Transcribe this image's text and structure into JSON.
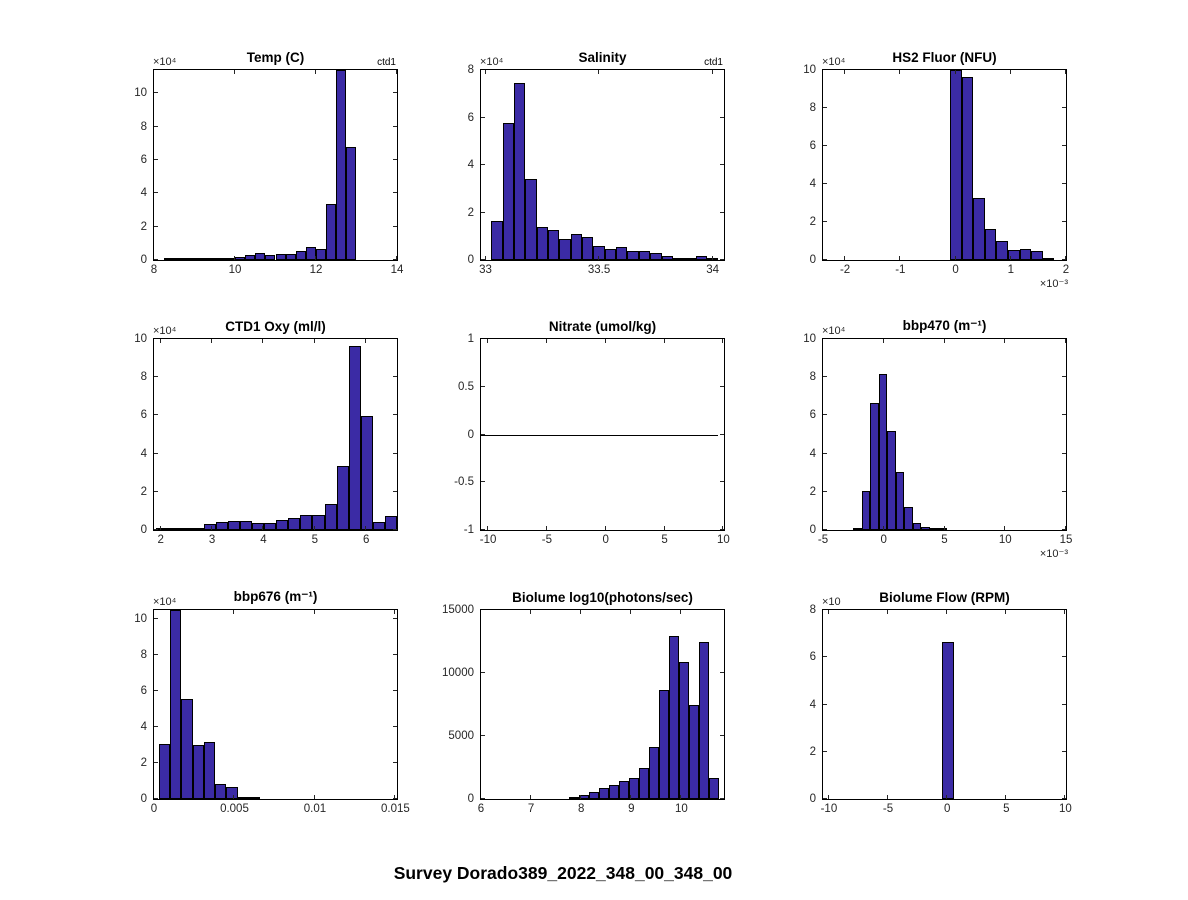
{
  "figure": {
    "title": "Survey Dorado389_2022_348_00_348_00",
    "background": "#ffffff"
  },
  "style": {
    "bar_fill": "#3b2ba5",
    "bar_edge": "#000000",
    "axis_color": "#000000",
    "tick_label_color": "#262626"
  },
  "chart_data": [
    {
      "id": "temp",
      "type": "bar",
      "title": "Temp (C)",
      "annotation": "ctd1",
      "y_exponent": "×10⁴",
      "x_exponent": "",
      "xlabel": "",
      "ylabel": "",
      "xlim": [
        8,
        14
      ],
      "ylim": [
        0,
        11.4
      ],
      "xtick_vals": [
        8,
        10,
        12,
        14
      ],
      "xtick_labels": [
        "8",
        "10",
        "12",
        "14"
      ],
      "ytick_vals": [
        0,
        2,
        4,
        6,
        8,
        10
      ],
      "ytick_labels": [
        "0",
        "2",
        "4",
        "6",
        "8",
        "10"
      ],
      "bins": {
        "start": 8.25,
        "width": 0.25
      },
      "values": [
        0.08,
        0.05,
        0.05,
        0.08,
        0.04,
        0.05,
        0.15,
        0.2,
        0.28,
        0.4,
        0.32,
        0.38,
        0.36,
        0.55,
        0.8,
        0.68,
        3.35,
        11.4,
        6.8
      ],
      "y_units": "counts ×10⁴",
      "note_clipped_bin": "bin 12.5-12.75 exceeds axis top (clipped)"
    },
    {
      "id": "salinity",
      "type": "bar",
      "title": "Salinity",
      "annotation": "ctd1",
      "y_exponent": "×10⁴",
      "x_exponent": "",
      "xlabel": "",
      "ylabel": "",
      "xlim": [
        32.98,
        34.05
      ],
      "ylim": [
        0,
        8
      ],
      "xtick_vals": [
        33,
        33.5,
        34
      ],
      "xtick_labels": [
        "33",
        "33.5",
        "34"
      ],
      "ytick_vals": [
        0,
        2,
        4,
        6,
        8
      ],
      "ytick_labels": [
        "0",
        "2",
        "4",
        "6",
        "8"
      ],
      "bins": {
        "start": 33.025,
        "width": 0.05
      },
      "values": [
        1.65,
        5.75,
        7.45,
        3.4,
        1.4,
        1.25,
        0.9,
        1.1,
        0.95,
        0.6,
        0.45,
        0.55,
        0.4,
        0.4,
        0.3,
        0.15,
        0.05,
        0.02,
        0.15,
        0.05
      ],
      "y_units": "counts ×10⁴"
    },
    {
      "id": "hs2fluor",
      "type": "bar",
      "title": "HS2 Fluor (NFU)",
      "annotation": "",
      "y_exponent": "×10⁴",
      "x_exponent": "×10⁻³",
      "xlabel": "",
      "ylabel": "",
      "xlim": [
        -2.4,
        2
      ],
      "ylim": [
        0,
        10
      ],
      "xtick_vals": [
        -2,
        -1,
        0,
        1,
        2
      ],
      "xtick_labels": [
        "-2",
        "-1",
        "0",
        "1",
        "2"
      ],
      "ytick_vals": [
        0,
        2,
        4,
        6,
        8,
        10
      ],
      "ytick_labels": [
        "0",
        "2",
        "4",
        "6",
        "8",
        "10"
      ],
      "bins": {
        "start": -0.1,
        "width": 0.21
      },
      "values": [
        10,
        9.65,
        3.25,
        1.65,
        1.0,
        0.55,
        0.6,
        0.45,
        0.05
      ],
      "y_units": "counts ×10⁴",
      "x_units": "×10⁻³"
    },
    {
      "id": "ctd1oxy",
      "type": "bar",
      "title": "CTD1 Oxy (ml/l)",
      "annotation": "",
      "y_exponent": "×10⁴",
      "x_exponent": "",
      "xlabel": "",
      "ylabel": "",
      "xlim": [
        1.87,
        6.6
      ],
      "ylim": [
        0,
        10
      ],
      "xtick_vals": [
        2,
        3,
        4,
        5,
        6
      ],
      "xtick_labels": [
        "2",
        "3",
        "4",
        "5",
        "6"
      ],
      "ytick_vals": [
        0,
        2,
        4,
        6,
        8,
        10
      ],
      "ytick_labels": [
        "0",
        "2",
        "4",
        "6",
        "8",
        "10"
      ],
      "bins": {
        "start": 1.9,
        "width": 0.235
      },
      "values": [
        0.12,
        0.05,
        0.1,
        0.1,
        0.3,
        0.4,
        0.45,
        0.45,
        0.35,
        0.35,
        0.5,
        0.65,
        0.8,
        0.8,
        1.35,
        3.35,
        9.65,
        5.95,
        0.4,
        0.75
      ],
      "y_units": "counts ×10⁴"
    },
    {
      "id": "nitrate",
      "type": "line",
      "title": "Nitrate (umol/kg)",
      "annotation": "",
      "y_exponent": "",
      "x_exponent": "",
      "xlabel": "",
      "ylabel": "",
      "xlim": [
        -10.6,
        10.05
      ],
      "ylim": [
        -1,
        1
      ],
      "xtick_vals": [
        -10,
        -5,
        0,
        5,
        10
      ],
      "xtick_labels": [
        "-10",
        "-5",
        "0",
        "5",
        "10"
      ],
      "ytick_vals": [
        -1,
        -0.5,
        0,
        0.5,
        1
      ],
      "ytick_labels": [
        "-1",
        "-0.5",
        "0",
        "0.5",
        "1"
      ],
      "zero_line": {
        "y": 0,
        "x_start": -10.6,
        "x_end": 9.5
      }
    },
    {
      "id": "bbp470",
      "type": "bar",
      "title": "bbp470 (m⁻¹)",
      "annotation": "",
      "y_exponent": "×10⁴",
      "x_exponent": "×10⁻³",
      "xlabel": "",
      "ylabel": "",
      "xlim": [
        -5,
        15
      ],
      "ylim": [
        0,
        10
      ],
      "xtick_vals": [
        -5,
        0,
        5,
        10,
        15
      ],
      "xtick_labels": [
        "-5",
        "0",
        "5",
        "10",
        "15"
      ],
      "ytick_vals": [
        0,
        2,
        4,
        6,
        8,
        10
      ],
      "ytick_labels": [
        "0",
        "2",
        "4",
        "6",
        "8",
        "10"
      ],
      "bins": {
        "start": -2.5,
        "width": 0.7
      },
      "values": [
        0.1,
        2.05,
        6.65,
        8.15,
        5.2,
        3.05,
        1.2,
        0.35,
        0.15,
        0.05,
        0.03
      ],
      "y_units": "counts ×10⁴",
      "x_units": "×10⁻³"
    },
    {
      "id": "bbp676",
      "type": "bar",
      "title": "bbp676 (m⁻¹)",
      "annotation": "",
      "y_exponent": "×10⁴",
      "x_exponent": "",
      "xlabel": "",
      "ylabel": "",
      "xlim": [
        0,
        0.0151
      ],
      "ylim": [
        0,
        10.5
      ],
      "xtick_vals": [
        0,
        0.005,
        0.01,
        0.015
      ],
      "xtick_labels": [
        "0",
        "0.005",
        "0.01",
        "0.015"
      ],
      "ytick_vals": [
        0,
        2,
        4,
        6,
        8,
        10
      ],
      "ytick_labels": [
        "0",
        "2",
        "4",
        "6",
        "8",
        "10"
      ],
      "bins": {
        "start": 0.0003,
        "width": 0.0007
      },
      "values": [
        3.05,
        10.5,
        5.55,
        3.0,
        3.15,
        0.85,
        0.65,
        0.1,
        0.05
      ],
      "y_units": "counts ×10⁴",
      "note_clipped_bin": "second bin exceeds axis top (clipped)"
    },
    {
      "id": "biolume",
      "type": "bar",
      "title": "Biolume log10(photons/sec)",
      "annotation": "",
      "y_exponent": "",
      "x_exponent": "",
      "xlabel": "",
      "ylabel": "",
      "xlim": [
        6,
        10.85
      ],
      "ylim": [
        0,
        15000
      ],
      "xtick_vals": [
        6,
        7,
        8,
        9,
        10
      ],
      "xtick_labels": [
        "6",
        "7",
        "8",
        "9",
        "10"
      ],
      "ytick_vals": [
        0,
        5000,
        10000,
        15000
      ],
      "ytick_labels": [
        "0",
        "5000",
        "10000",
        "15000"
      ],
      "bins": {
        "start": 7.75,
        "width": 0.2
      },
      "values": [
        150,
        280,
        550,
        900,
        1150,
        1450,
        1700,
        2500,
        4150,
        8650,
        12900,
        10900,
        7450,
        12500,
        1700
      ],
      "y_units": "counts"
    },
    {
      "id": "biolumeflow",
      "type": "bar",
      "title": "Biolume Flow (RPM)",
      "annotation": "",
      "y_exponent": "×10",
      "x_exponent": "",
      "xlabel": "",
      "ylabel": "",
      "xlim": [
        -10.5,
        10.05
      ],
      "ylim": [
        0,
        8
      ],
      "xtick_vals": [
        -10,
        -5,
        0,
        5,
        10
      ],
      "xtick_labels": [
        "-10",
        "-5",
        "0",
        "5",
        "10"
      ],
      "ytick_vals": [
        0,
        2,
        4,
        6,
        8
      ],
      "ytick_labels": [
        "0",
        "2",
        "4",
        "6",
        "8"
      ],
      "bins": {
        "start": -0.4,
        "width": 1.0
      },
      "values": [
        6.65
      ],
      "y_units": "counts ×10 (exponent partially hidden by title)"
    }
  ]
}
